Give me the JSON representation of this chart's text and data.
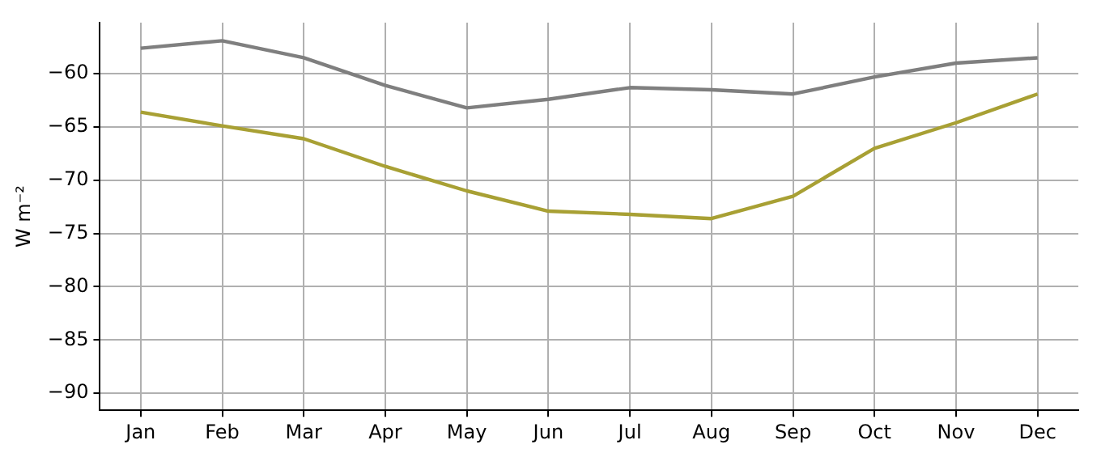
{
  "chart_data": {
    "type": "line",
    "ylabel": "W m⁻²",
    "categories": [
      "Jan",
      "Feb",
      "Mar",
      "Apr",
      "May",
      "Jun",
      "Jul",
      "Aug",
      "Sep",
      "Oct",
      "Nov",
      "Dec"
    ],
    "series": [
      {
        "color": "#7f7f7f",
        "values": [
          -57.6,
          -56.9,
          -58.5,
          -61.1,
          -63.2,
          -62.4,
          -61.3,
          -61.5,
          -61.9,
          -60.3,
          -59.0,
          -58.5
        ]
      },
      {
        "color": "#a8a034",
        "values": [
          -63.6,
          -64.9,
          -66.1,
          -68.7,
          -71.0,
          -72.9,
          -73.2,
          -73.6,
          -71.5,
          -67.0,
          -64.6,
          -61.9
        ]
      }
    ],
    "ylim": [
      -91.6,
      -55.2
    ],
    "yticks": [
      -90,
      -85,
      -80,
      -75,
      -70,
      -65,
      -60
    ],
    "grid": true,
    "legend": false,
    "marker": "none",
    "line_style": "solid"
  }
}
